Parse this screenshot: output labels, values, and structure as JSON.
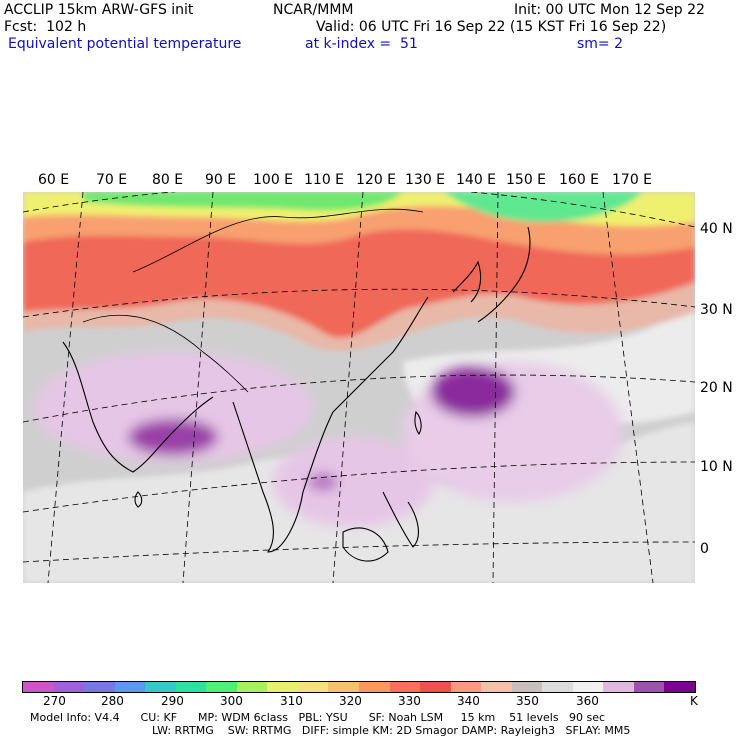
{
  "header": {
    "model": "ACCLIP 15km ARW-GFS init",
    "center": "NCAR/MMM",
    "init": "Init: 00 UTC Mon 12 Sep 22",
    "fcst": "Fcst:  102 h",
    "valid": "Valid: 06 UTC Fri 16 Sep 22 (15 KST Fri 16 Sep 22)",
    "field": "Equivalent potential temperature",
    "level": "at k-index =  51",
    "smooth": "sm= 2"
  },
  "map": {
    "lon_labels": [
      "60 E",
      "70 E",
      "80 E",
      "90 E",
      "100 E",
      "110 E",
      "120 E",
      "130 E",
      "140 E",
      "150 E",
      "160 E",
      "170 E"
    ],
    "lat_labels": [
      "40 N",
      "30 N",
      "20 N",
      "10 N",
      "0"
    ]
  },
  "colorbar": {
    "labels": [
      "270",
      "280",
      "290",
      "300",
      "310",
      "320",
      "330",
      "340",
      "350",
      "360",
      "K"
    ],
    "colors": [
      "#cc55cc",
      "#a060d8",
      "#7878e0",
      "#5a9aec",
      "#38c8c8",
      "#30e0a0",
      "#50f070",
      "#a8f060",
      "#e8f070",
      "#f8e080",
      "#f8c070",
      "#f89a60",
      "#f87058",
      "#f05050",
      "#f89a80",
      "#f4c0a8",
      "#c8c0bc",
      "#dcdcdc",
      "#f0f0f0",
      "#e0b8e0",
      "#a050b0",
      "#7a0090"
    ]
  },
  "model_info": {
    "line1": "Model Info: V4.4      CU: KF      MP: WDM 6class   PBL: YSU      SF: Noah LSM     15 km    51 levels   90 sec",
    "line2": "LW: RRTMG    SW: RRTMG   DIFF: simple KM: 2D Smagor DAMP: Rayleigh3   SFLAY: MM5"
  }
}
